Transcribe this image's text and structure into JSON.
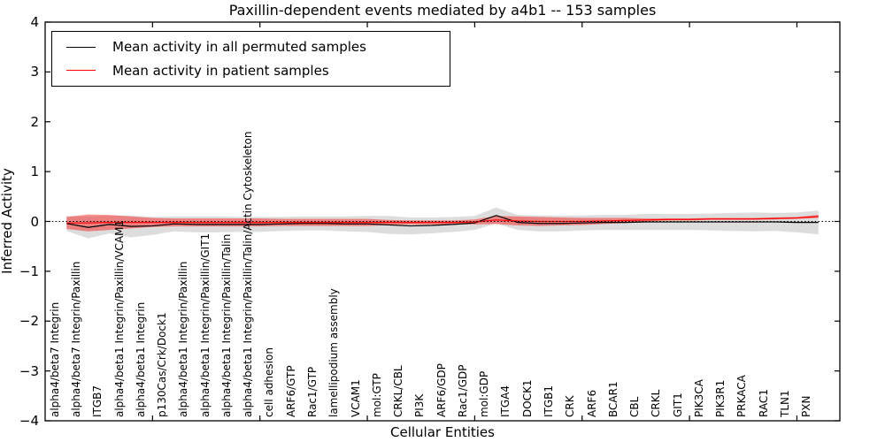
{
  "chart_data": {
    "type": "line",
    "title": "Paxillin-dependent events mediated by a4b1 -- 153 samples",
    "xlabel": "Cellular Entities",
    "ylabel": "Inferred Activity",
    "ylim": [
      -4,
      4
    ],
    "y_ticks": [
      4,
      3,
      2,
      1,
      0,
      -1,
      -2,
      -3,
      -4
    ],
    "x_major_tick_values": [
      5,
      10,
      15,
      20,
      25,
      30,
      35
    ],
    "grid": false,
    "legend_position": "upper left",
    "categories": [
      "alpha4/beta7 Integrin",
      "alpha4/beta7 Integrin/Paxillin",
      "ITGB7",
      "alpha4/beta1 Integrin/Paxillin/VCAM1",
      "alpha4/beta1 Integrin",
      "p130Cas/Crk/Dock1",
      "alpha4/beta1 Integrin/Paxillin",
      "alpha4/beta1 Integrin/Paxillin/GIT1",
      "alpha4/beta1 Integrin/Paxillin/Talin",
      "alpha4/beta1 Integrin/Paxillin/Talin/Actin Cytoskeleton",
      "cell adhesion",
      "ARF6/GTP",
      "Rac1/GTP",
      "lamellipodium assembly",
      "VCAM1",
      "mol:GTP",
      "CRKL/CBL",
      "PI3K",
      "ARF6/GDP",
      "Rac1/GDP",
      "mol:GDP",
      "ITGA4",
      "DOCK1",
      "ITGB1",
      "CRK",
      "ARF6",
      "BCAR1",
      "CBL",
      "CRKL",
      "GIT1",
      "PIK3CA",
      "PIK3R1",
      "PRKACA",
      "RAC1",
      "TLN1",
      "PXN"
    ],
    "series": [
      {
        "name": "Mean activity in all permuted samples",
        "color": "#000000",
        "band_color": "#aaaaaa",
        "band_opacity": 0.4,
        "values": [
          -0.04,
          -0.12,
          -0.06,
          -0.1,
          -0.09,
          -0.05,
          -0.06,
          -0.06,
          -0.06,
          -0.06,
          -0.05,
          -0.04,
          -0.04,
          -0.05,
          -0.05,
          -0.07,
          -0.09,
          -0.08,
          -0.06,
          -0.03,
          0.12,
          -0.02,
          -0.04,
          -0.04,
          -0.03,
          -0.02,
          -0.02,
          -0.01,
          -0.01,
          -0.01,
          -0.01,
          -0.01,
          -0.01,
          -0.01,
          -0.02,
          -0.02
        ],
        "band_halfwidth": [
          0.15,
          0.22,
          0.18,
          0.22,
          0.18,
          0.15,
          0.16,
          0.16,
          0.15,
          0.15,
          0.14,
          0.14,
          0.14,
          0.15,
          0.16,
          0.18,
          0.17,
          0.16,
          0.15,
          0.14,
          0.16,
          0.15,
          0.16,
          0.16,
          0.15,
          0.15,
          0.15,
          0.16,
          0.16,
          0.16,
          0.17,
          0.18,
          0.19,
          0.18,
          0.2,
          0.24
        ]
      },
      {
        "name": "Mean activity in patient samples",
        "color": "#ff0000",
        "band_color": "#ff0000",
        "band_opacity": 0.42,
        "values": [
          -0.03,
          -0.03,
          -0.02,
          -0.02,
          -0.02,
          -0.02,
          -0.02,
          -0.02,
          -0.02,
          -0.02,
          -0.02,
          -0.02,
          -0.02,
          -0.02,
          -0.02,
          -0.02,
          -0.02,
          -0.02,
          -0.02,
          -0.01,
          0.03,
          0.01,
          0.0,
          0.0,
          0.0,
          0.01,
          0.02,
          0.03,
          0.04,
          0.04,
          0.05,
          0.05,
          0.05,
          0.06,
          0.07,
          0.1
        ],
        "band_halfwidth": [
          0.12,
          0.17,
          0.15,
          0.12,
          0.09,
          0.08,
          0.08,
          0.08,
          0.08,
          0.08,
          0.07,
          0.07,
          0.07,
          0.07,
          0.07,
          0.05,
          0.04,
          0.04,
          0.04,
          0.05,
          0.08,
          0.09,
          0.09,
          0.08,
          0.07,
          0.06,
          0.05,
          0.03,
          0.02,
          0.02,
          0.02,
          0.02,
          0.02,
          0.02,
          0.02,
          0.03
        ]
      }
    ],
    "zero_line": {
      "value": 0,
      "style": "dotted",
      "color": "#000000"
    }
  }
}
